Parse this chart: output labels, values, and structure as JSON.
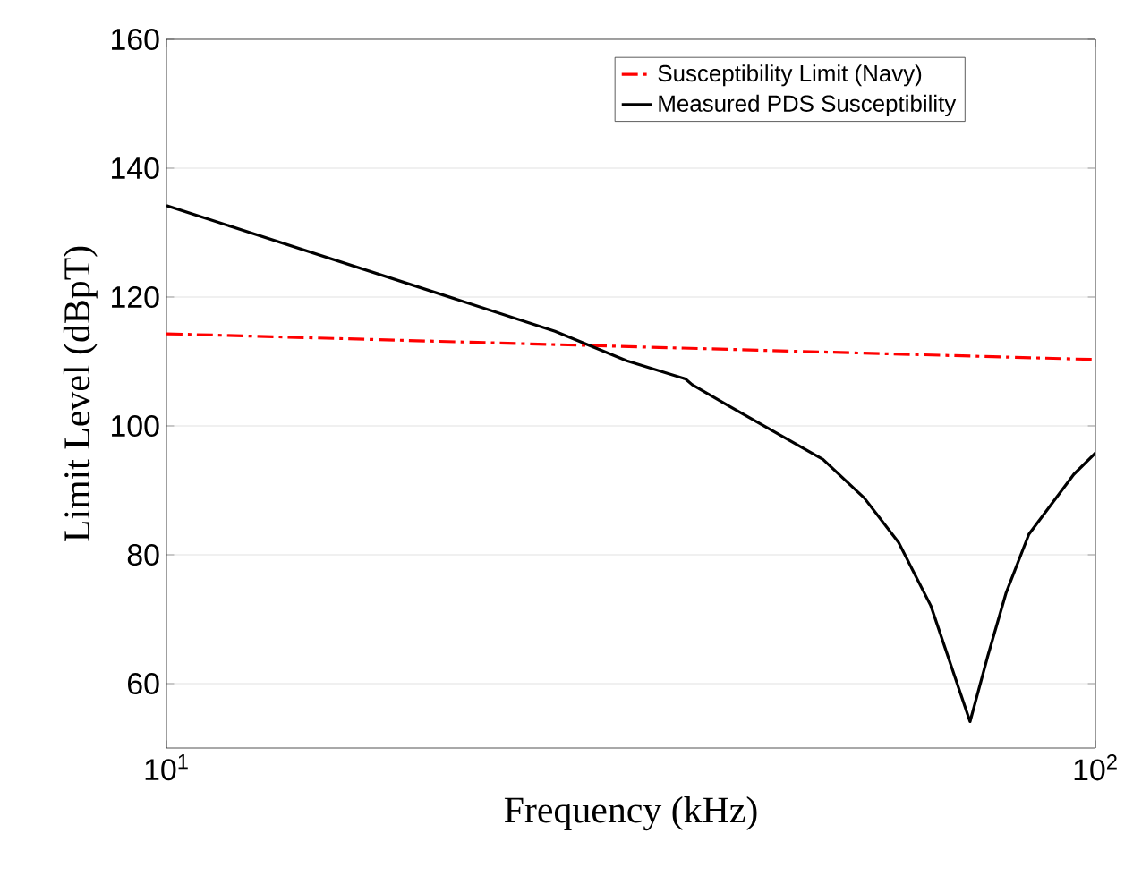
{
  "chart_data": {
    "type": "line",
    "xlabel": "Frequency (kHz)",
    "ylabel": "Limit Level (dBpT)",
    "log": "x",
    "grid": true,
    "legend": "top right",
    "marker": "none",
    "xlim": [
      10,
      100
    ],
    "xticks": [
      {
        "value": 10,
        "label": "10$^{1}$"
      },
      {
        "value": 100,
        "label": "10$^{2}$"
      }
    ],
    "ylim": [
      50,
      160
    ],
    "yticks": [
      60,
      80,
      100,
      120,
      140,
      160
    ],
    "series": [
      {
        "name": "Susceptibility Limit (Navy)",
        "color": "#ff0000",
        "line_style": "dashdot",
        "x": [
          10,
          100
        ],
        "values": [
          114.3,
          110.3
        ]
      },
      {
        "name": "Measured PDS Susceptibility",
        "color": "#000000",
        "line_style": "solid",
        "x": [
          10,
          26.2,
          31.3,
          36.2,
          36.8,
          40.3,
          50.9,
          56.4,
          61.4,
          66.5,
          73.3,
          76.6,
          80.1,
          84.8,
          94.8,
          100
        ],
        "values": [
          134.2,
          114.7,
          110.1,
          107.3,
          106.4,
          103.1,
          94.8,
          88.8,
          81.9,
          72.1,
          54.1,
          64.3,
          74.0,
          83.2,
          92.5,
          95.8
        ]
      }
    ]
  }
}
